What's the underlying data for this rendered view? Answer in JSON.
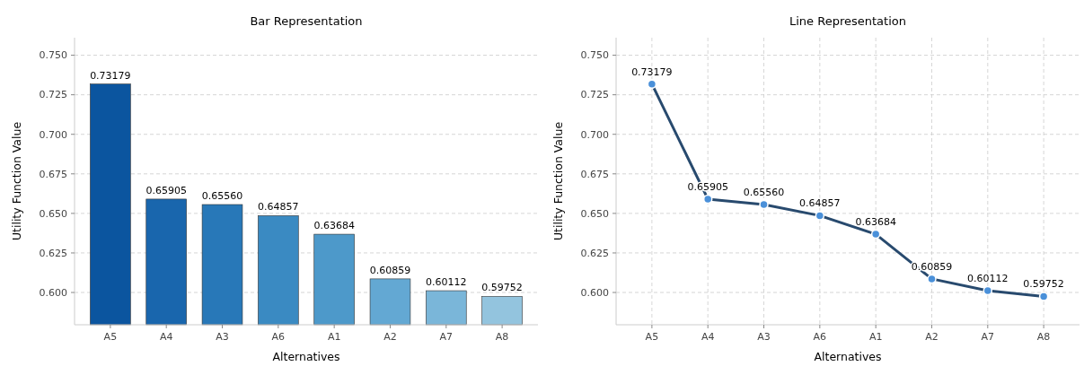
{
  "chart_data": [
    {
      "type": "bar",
      "title": "Bar Representation",
      "xlabel": "Alternatives",
      "ylabel": "Utility Function Value",
      "categories": [
        "A5",
        "A4",
        "A3",
        "A6",
        "A1",
        "A2",
        "A7",
        "A8"
      ],
      "values": [
        0.73179,
        0.65905,
        0.6556,
        0.64857,
        0.63684,
        0.60859,
        0.60112,
        0.59752
      ],
      "colors": [
        "#0b559f",
        "#1966ad",
        "#2878b8",
        "#3a8ac2",
        "#4d99ca",
        "#63a8d3",
        "#7ab6d9",
        "#93c4de"
      ],
      "value_labels": [
        "0.73179",
        "0.65905",
        "0.65560",
        "0.64857",
        "0.63684",
        "0.60859",
        "0.60112",
        "0.59752"
      ],
      "ylim": [
        0.5796,
        0.7611
      ],
      "yticks": [
        {
          "value": 0.6,
          "label": "0.600"
        },
        0.625,
        {
          "value": 0.65,
          "label": "0.650"
        },
        0.675,
        {
          "value": 0.7,
          "label": "0.700"
        },
        0.725,
        {
          "value": 0.75,
          "label": "0.750"
        }
      ],
      "grid": "y"
    },
    {
      "type": "line",
      "title": "Line Representation",
      "xlabel": "Alternatives",
      "ylabel": "Utility Function Value",
      "categories": [
        "A5",
        "A4",
        "A3",
        "A6",
        "A1",
        "A2",
        "A7",
        "A8"
      ],
      "series": [
        {
          "color": "#284a6e",
          "values": [
            0.73179,
            0.65905,
            0.6556,
            0.64857,
            0.63684,
            0.60859,
            0.60112,
            0.59752
          ],
          "value_labels": [
            "0.73179",
            "0.65905",
            "0.65560",
            "0.64857",
            "0.63684",
            "0.60859",
            "0.60112",
            "0.59752"
          ]
        }
      ],
      "marker": "circle",
      "line_style": "solid",
      "ylim": [
        0.5796,
        0.7611
      ],
      "yticks": [
        {
          "value": 0.6,
          "label": "0.600"
        },
        0.625,
        {
          "value": 0.65,
          "label": "0.650"
        },
        0.675,
        {
          "value": 0.7,
          "label": "0.700"
        },
        0.725,
        {
          "value": 0.75,
          "label": "0.750"
        }
      ],
      "grid": true
    }
  ]
}
